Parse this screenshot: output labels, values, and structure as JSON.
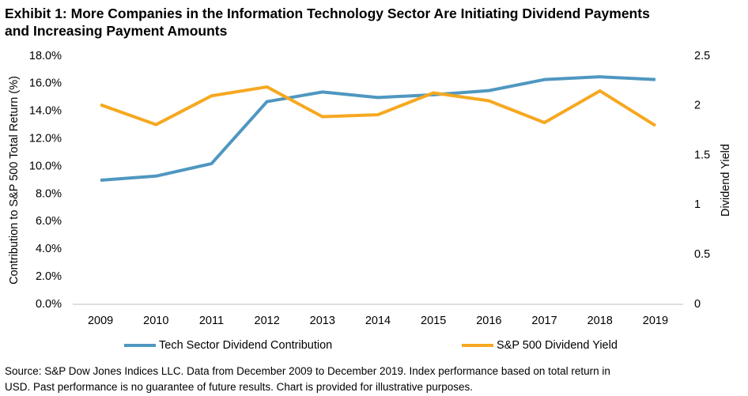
{
  "chart_data": {
    "type": "line",
    "title": [
      "Exhibit 1: More Companies in the Information Technology Sector Are Initiating Dividend Payments",
      "and Increasing Payment Amounts"
    ],
    "categories": [
      "2009",
      "2010",
      "2011",
      "2012",
      "2013",
      "2014",
      "2015",
      "2016",
      "2017",
      "2018",
      "2019"
    ],
    "series": [
      {
        "name": "Tech Sector Dividend Contribution",
        "color": "#4f97c0",
        "values": [
          9.0,
          9.3,
          10.2,
          14.7,
          15.4,
          15.0,
          15.2,
          15.5,
          16.3,
          16.5,
          16.3
        ]
      },
      {
        "name": "S&P 500 Dividend Yield",
        "color": "#f6a821",
        "axis": "y2",
        "values": [
          2.01,
          1.81,
          2.1,
          2.19,
          1.89,
          1.91,
          2.13,
          2.05,
          1.83,
          2.15,
          1.8
        ]
      }
    ],
    "ylabel": "Contribution to S&P 500 Total Return (%)",
    "y2label": "Dividend Yield",
    "ylim": [
      0,
      18
    ],
    "yticks": [
      {
        "value": 0,
        "label": "0.0%"
      },
      {
        "value": 2,
        "label": "2.0%"
      },
      {
        "value": 4,
        "label": "4.0%"
      },
      {
        "value": 6,
        "label": "6.0%"
      },
      {
        "value": 8,
        "label": "8.0%"
      },
      {
        "value": 10,
        "label": "10.0%"
      },
      {
        "value": 12,
        "label": "12.0%"
      },
      {
        "value": 14,
        "label": "14.0%"
      },
      {
        "value": 16,
        "label": "16.0%"
      },
      {
        "value": 18,
        "label": "18.0%"
      }
    ],
    "y2lim": [
      0,
      2.5
    ],
    "y2ticks": [
      0,
      0.5,
      1,
      1.5,
      2,
      2.5
    ],
    "grid": false,
    "legend": "bottom",
    "source": [
      "Source: S&P Dow Jones Indices LLC. Data from December 2009 to December 2019. Index performance based on total return in",
      "USD. Past performance is no guarantee of future results. Chart is provided for illustrative purposes."
    ]
  }
}
